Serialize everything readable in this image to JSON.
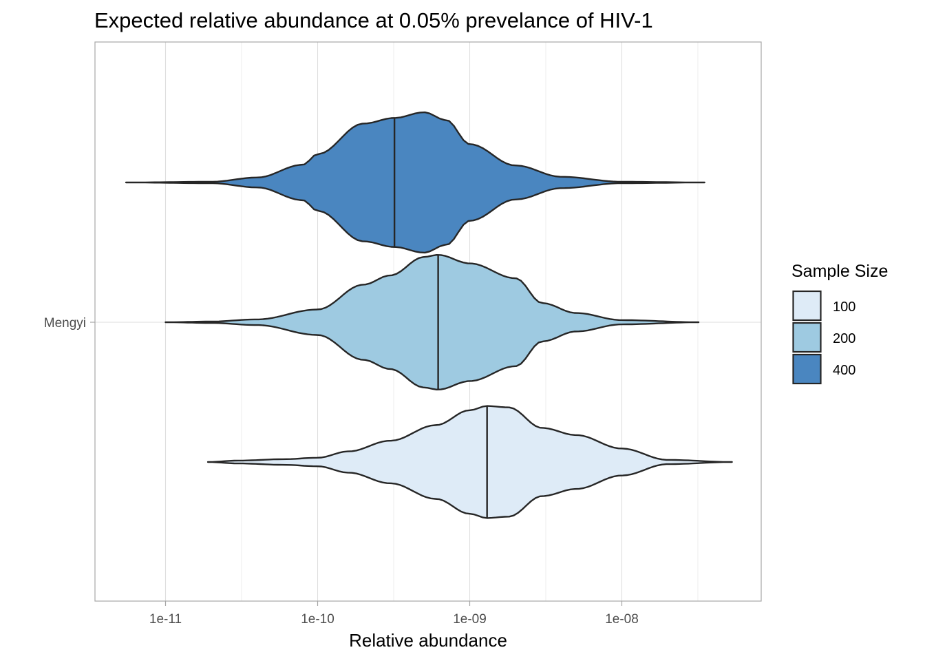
{
  "chart_data": {
    "type": "violin",
    "orientation": "horizontal",
    "title": "Expected relative abundance at 0.05% prevelance of HIV-1",
    "xlabel": "Relative abundance",
    "ylabel": "",
    "x_scale": "log10",
    "xlim": [
      5e-12,
      7e-08
    ],
    "x_ticks": [
      1e-11,
      1e-10,
      1e-09,
      1e-08
    ],
    "x_tick_labels": [
      "1e-11",
      "1e-10",
      "1e-09",
      "1e-08"
    ],
    "categories": [
      "Mengyi"
    ],
    "grid": true,
    "legend": {
      "title": "Sample Size",
      "position": "right"
    },
    "series": [
      {
        "name": "100",
        "color": "#deebf7",
        "min": 1.9e-11,
        "max": 5.3e-08,
        "median": 1.3e-09,
        "density_profile": [
          [
            1.9e-11,
            0.0
          ],
          [
            3e-11,
            0.02
          ],
          [
            6e-11,
            0.04
          ],
          [
            1e-10,
            0.06
          ],
          [
            1.6e-10,
            0.15
          ],
          [
            3e-10,
            0.3
          ],
          [
            6e-10,
            0.52
          ],
          [
            1e-09,
            0.73
          ],
          [
            1.3e-09,
            0.79
          ],
          [
            1.8e-09,
            0.77
          ],
          [
            3e-09,
            0.48
          ],
          [
            5e-09,
            0.38
          ],
          [
            1e-08,
            0.19
          ],
          [
            2e-08,
            0.03
          ],
          [
            5.3e-08,
            0.0
          ]
        ]
      },
      {
        "name": "200",
        "color": "#9ecae1",
        "min": 1e-11,
        "max": 3.2e-08,
        "median": 6.2e-10,
        "density_profile": [
          [
            1e-11,
            0.0
          ],
          [
            2e-11,
            0.01
          ],
          [
            4e-11,
            0.04
          ],
          [
            1e-10,
            0.18
          ],
          [
            2e-10,
            0.53
          ],
          [
            3e-10,
            0.66
          ],
          [
            5e-10,
            0.92
          ],
          [
            6.2e-10,
            0.95
          ],
          [
            1e-09,
            0.83
          ],
          [
            2e-09,
            0.62
          ],
          [
            3e-09,
            0.27
          ],
          [
            5e-09,
            0.13
          ],
          [
            1e-08,
            0.03
          ],
          [
            3.2e-08,
            0.0
          ]
        ]
      },
      {
        "name": "400",
        "color": "#4a86c0",
        "min": 5.5e-12,
        "max": 3.5e-08,
        "median": 3.2e-10,
        "density_profile": [
          [
            5.5e-12,
            0.0
          ],
          [
            2e-11,
            0.01
          ],
          [
            4e-11,
            0.07
          ],
          [
            8e-11,
            0.25
          ],
          [
            1e-10,
            0.4
          ],
          [
            2e-10,
            0.83
          ],
          [
            3.2e-10,
            0.91
          ],
          [
            5e-10,
            0.99
          ],
          [
            7e-10,
            0.88
          ],
          [
            1e-09,
            0.54
          ],
          [
            2e-09,
            0.24
          ],
          [
            4e-09,
            0.08
          ],
          [
            1e-08,
            0.01
          ],
          [
            3.5e-08,
            0.0
          ]
        ]
      }
    ]
  }
}
